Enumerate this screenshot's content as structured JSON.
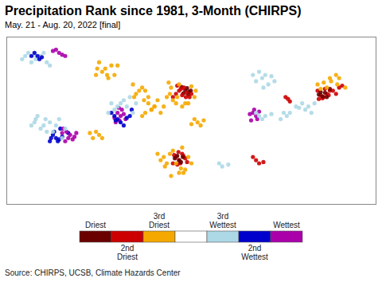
{
  "chart_data": {
    "type": "scatter",
    "title": "Precipitation Rank since 1981, 3-Month (CHIRPS)",
    "subtitle": "May. 21 - Aug. 20, 2022 [final]",
    "source": "Source: CHIRPS, UCSB, Climate Hazards Center",
    "xlim": [
      -125.5,
      -65.5
    ],
    "ylim": [
      23.5,
      50.0
    ],
    "tick_labels": false,
    "color_legend": [
      {
        "color": "#6b0000",
        "label": "Driest"
      },
      {
        "color": "#cc0000",
        "label": "2nd\nDriest"
      },
      {
        "color": "#f5a800",
        "label": "3rd\nDriest"
      },
      {
        "color": "#ffffff",
        "label": null
      },
      {
        "color": "#add8e6",
        "label": "3rd\nWettest"
      },
      {
        "color": "#0000cc",
        "label": "2nd\nWettest"
      },
      {
        "color": "#aa00aa",
        "label": "Wettest"
      }
    ],
    "series": [
      {
        "color": "#6b0000",
        "x": [
          -96.5,
          -96.2,
          -95.9,
          -96.8,
          -97.1,
          -96.0,
          -95.6
        ],
        "y": [
          41.6,
          41.9,
          41.3,
          41.1,
          42.1,
          40.9,
          41.5
        ]
      },
      {
        "color": "#cc0000",
        "x": [
          -97.5,
          -98.0,
          -96.4,
          -97.0,
          -95.5,
          -98.5,
          -96.3,
          -95.8,
          -97.2,
          -96.7,
          -97.8
        ],
        "y": [
          41.5,
          41.0,
          40.5,
          40.8,
          41.0,
          40.5,
          41.2,
          40.5,
          41.8,
          42.0,
          42.3
        ]
      },
      {
        "color": "#f5a800",
        "x": [
          -98.5,
          -99.0,
          -97.8,
          -96.5,
          -95.0,
          -98.0,
          -99.5,
          -97.0,
          -96.0,
          -98.8,
          -97.5,
          -100.0,
          -94.8,
          -95.5,
          -99.2
        ],
        "y": [
          40.0,
          41.0,
          40.5,
          39.5,
          40.5,
          39.5,
          40.5,
          39.0,
          39.5,
          42.0,
          42.5,
          39.0,
          41.5,
          42.2,
          42.8
        ]
      },
      {
        "color": "#cc0000",
        "x": [
          -97.5,
          -98.0,
          -97.0,
          -96.5,
          -98.5,
          -97.8,
          -96.8,
          -97.3,
          -98.3,
          -96.2,
          -97.6
        ],
        "y": [
          30.5,
          31.0,
          31.5,
          30.8,
          30.0,
          29.8,
          31.2,
          30.0,
          31.3,
          30.2,
          31.8
        ]
      },
      {
        "color": "#f5a800",
        "x": [
          -99.0,
          -98.5,
          -97.0,
          -96.0,
          -100.0,
          -98.0,
          -97.5,
          -96.5,
          -99.5,
          -100.5,
          -97.2,
          -98.8,
          -96.8,
          -95.5,
          -99.8,
          -101.0
        ],
        "y": [
          31.5,
          32.0,
          32.5,
          31.0,
          31.0,
          30.0,
          28.5,
          29.0,
          30.0,
          30.5,
          29.2,
          28.0,
          28.5,
          30.0,
          29.5,
          31.5
        ]
      },
      {
        "color": "#6b0000",
        "x": [
          -97.2,
          -97.8,
          -98.2,
          -96.9,
          -97.5
        ],
        "y": [
          30.2,
          31.2,
          30.8,
          31.0,
          30.5
        ]
      },
      {
        "color": "#0000cc",
        "x": [
          -117.5,
          -118.0,
          -117.0,
          -116.5,
          -118.5,
          -117.8,
          -116.8,
          -115.5,
          -117.2,
          -118.3
        ],
        "y": [
          34.0,
          34.5,
          33.8,
          34.2,
          33.5,
          35.0,
          35.5,
          34.8,
          33.5,
          34.0
        ]
      },
      {
        "color": "#aa00aa",
        "x": [
          -115.5,
          -116.0,
          -114.8,
          -115.2,
          -116.5,
          -114.5,
          -115.8,
          -116.3,
          -114.2
        ],
        "y": [
          34.0,
          33.5,
          33.8,
          34.5,
          34.8,
          34.2,
          35.0,
          35.5,
          34.8
        ]
      },
      {
        "color": "#add8e6",
        "x": [
          -120.5,
          -121.0,
          -119.5,
          -118.5,
          -117.0,
          -116.0,
          -119.0,
          -120.0,
          -121.5,
          -117.5,
          -116.5,
          -120.8,
          -119.2,
          -118.0
        ],
        "y": [
          37.5,
          36.5,
          36.0,
          36.5,
          37.0,
          35.5,
          35.0,
          35.5,
          36.0,
          36.0,
          34.0,
          37.0,
          37.0,
          35.0
        ]
      },
      {
        "color": "#add8e6",
        "x": [
          -120.0,
          -119.5,
          -121.0,
          -122.0,
          -120.8,
          -121.5,
          -119.0,
          -118.5,
          -122.5,
          -123.0
        ],
        "y": [
          47.0,
          47.5,
          47.2,
          47.5,
          46.5,
          46.0,
          46.0,
          45.5,
          47.0,
          46.5
        ]
      },
      {
        "color": "#0000cc",
        "x": [
          -120.5,
          -121.0,
          -119.8,
          -120.2,
          -121.5
        ],
        "y": [
          47.0,
          47.5,
          46.8,
          46.5,
          47.0
        ]
      },
      {
        "color": "#aa00aa",
        "x": [
          -117.0,
          -117.5,
          -116.5,
          -118.0,
          -116.0
        ],
        "y": [
          47.5,
          48.0,
          47.2,
          47.8,
          47.0
        ]
      },
      {
        "color": "#f5a800",
        "x": [
          -110.0,
          -109.5,
          -108.5,
          -110.5,
          -111.0,
          -109.0,
          -108.0,
          -107.5,
          -110.8,
          -109.2
        ],
        "y": [
          44.5,
          45.0,
          45.5,
          46.0,
          44.0,
          43.5,
          44.0,
          45.5,
          45.0,
          44.0
        ]
      },
      {
        "color": "#f5a800",
        "x": [
          -104.0,
          -103.5,
          -104.5,
          -105.0,
          -103.0,
          -102.5,
          -102.0,
          -101.5,
          -103.2,
          -104.8
        ],
        "y": [
          41.5,
          42.0,
          41.0,
          42.5,
          41.5,
          40.5,
          38.5,
          39.0,
          40.0,
          40.5
        ]
      },
      {
        "color": "#aa00aa",
        "x": [
          -107.0,
          -107.5,
          -106.5,
          -108.0,
          -107.2,
          -106.8,
          -107.8,
          -106.2,
          -107.3
        ],
        "y": [
          37.5,
          38.0,
          37.8,
          37.2,
          36.8,
          38.5,
          36.5,
          37.0,
          38.8
        ]
      },
      {
        "color": "#0000cc",
        "x": [
          -107.5,
          -108.0,
          -106.0,
          -107.0,
          -108.5,
          -105.5,
          -106.5,
          -107.8,
          -105.2
        ],
        "y": [
          37.0,
          37.5,
          37.2,
          36.5,
          38.0,
          37.5,
          36.0,
          36.8,
          38.5
        ]
      },
      {
        "color": "#add8e6",
        "x": [
          -105.0,
          -106.0,
          -107.0,
          -108.0,
          -106.5,
          -105.5,
          -104.5,
          -107.5,
          -108.5,
          -109.0
        ],
        "y": [
          38.0,
          39.0,
          39.5,
          38.5,
          40.0,
          40.5,
          39.5,
          39.0,
          39.5,
          38.0
        ]
      },
      {
        "color": "#cc0000",
        "x": [
          -74.0,
          -73.5,
          -74.5,
          -75.0,
          -73.0,
          -71.5,
          -72.0,
          -74.2,
          -73.2,
          -72.5,
          -71.0,
          -74.8,
          -73.8
        ],
        "y": [
          40.5,
          41.0,
          40.8,
          41.5,
          41.5,
          42.0,
          41.0,
          40.3,
          40.8,
          41.5,
          42.3,
          40.2,
          41.8
        ]
      },
      {
        "color": "#6b0000",
        "x": [
          -74.2,
          -73.8,
          -74.8,
          -73.5,
          -74.5,
          -73.0
        ],
        "y": [
          40.6,
          41.2,
          40.9,
          40.5,
          41.3,
          41.8
        ]
      },
      {
        "color": "#f5a800",
        "x": [
          -74.5,
          -75.0,
          -73.5,
          -72.8,
          -74.0,
          -71.8,
          -70.5,
          -71.5,
          -73.0,
          -72.0
        ],
        "y": [
          41.8,
          42.5,
          42.0,
          43.0,
          42.8,
          42.5,
          42.0,
          43.5,
          43.5,
          44.0
        ]
      },
      {
        "color": "#aa00aa",
        "x": [
          -85.0,
          -85.5,
          -84.8,
          -86.0,
          -85.3,
          -84.5,
          -85.8
        ],
        "y": [
          37.5,
          38.0,
          37.0,
          37.8,
          38.5,
          38.2,
          36.8
        ]
      },
      {
        "color": "#add8e6",
        "x": [
          -77.0,
          -76.5,
          -78.0,
          -75.5,
          -77.5,
          -76.0,
          -78.5
        ],
        "y": [
          38.5,
          39.0,
          38.8,
          39.5,
          39.5,
          38.0,
          39.0
        ]
      },
      {
        "color": "#add8e6",
        "x": [
          -84.0,
          -83.5,
          -82.5,
          -85.0,
          -83.0,
          -84.5,
          -82.0,
          -85.5,
          -83.8
        ],
        "y": [
          43.5,
          44.0,
          43.8,
          43.0,
          42.5,
          44.5,
          43.0,
          44.0,
          42.0
        ]
      },
      {
        "color": "#f5a800",
        "x": [
          -102.0,
          -101.5,
          -103.0,
          -102.5,
          -101.0,
          -100.5,
          -103.5
        ],
        "y": [
          38.5,
          39.0,
          38.0,
          39.5,
          40.0,
          38.0,
          37.5
        ]
      },
      {
        "color": "#cc0000",
        "x": [
          -85.0,
          -84.5,
          -85.5,
          -83.8
        ],
        "y": [
          30.5,
          30.0,
          31.0,
          30.2
        ]
      },
      {
        "color": "#add8e6",
        "x": [
          -84.5,
          -85.0,
          -84.0,
          -83.5,
          -82.5
        ],
        "y": [
          37.5,
          38.0,
          37.0,
          37.5,
          37.8
        ]
      },
      {
        "color": "#add8e6",
        "x": [
          -80.0,
          -80.5,
          -81.0,
          -79.5
        ],
        "y": [
          37.5,
          38.0,
          37.0,
          38.0
        ]
      },
      {
        "color": "#f5a800",
        "x": [
          -94.5,
          -95.0,
          -94.0,
          -93.5,
          -95.5
        ],
        "y": [
          36.5,
          37.0,
          36.0,
          36.8,
          36.2
        ]
      },
      {
        "color": "#add8e6",
        "x": [
          -90.5,
          -91.0,
          -89.5
        ],
        "y": [
          29.5,
          30.0,
          29.8
        ]
      },
      {
        "color": "#cc0000",
        "x": [
          -79.8,
          -80.2,
          -79.5
        ],
        "y": [
          40.2,
          40.5,
          39.8
        ]
      },
      {
        "color": "#f5a800",
        "x": [
          -110.5,
          -111.0,
          -111.5,
          -110.0,
          -112.0
        ],
        "y": [
          34.5,
          35.0,
          34.0,
          34.0,
          34.8
        ]
      }
    ]
  }
}
